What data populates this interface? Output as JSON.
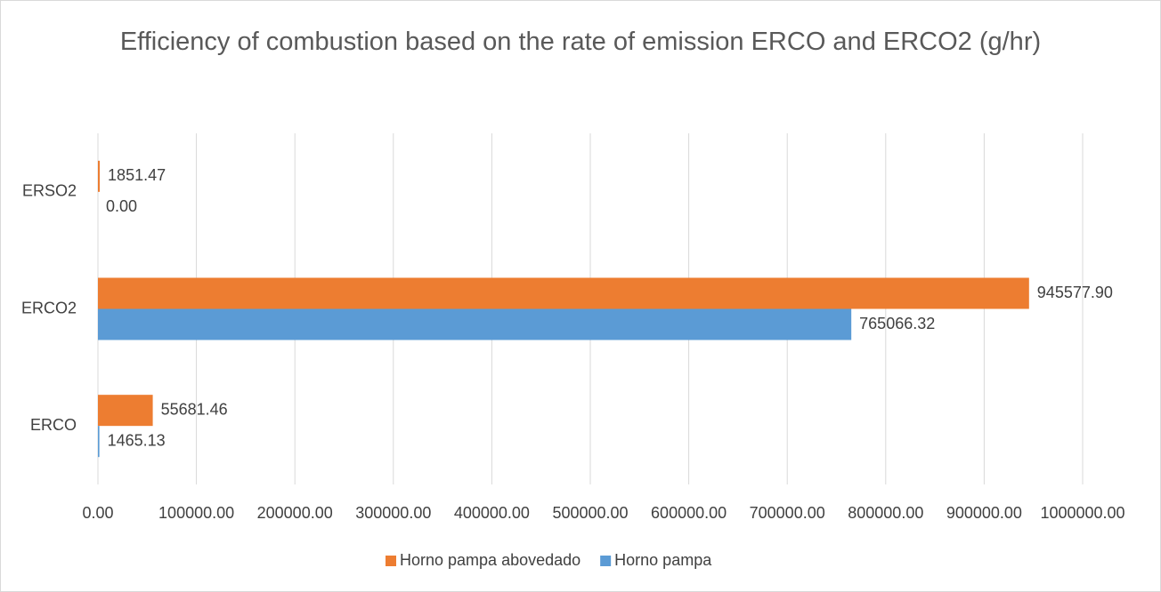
{
  "chart_data": {
    "type": "bar",
    "orientation": "horizontal",
    "title": "Efficiency of combustion based on the rate of emission ERCO and ERCO2 (g/hr)",
    "categories": [
      "ERCO",
      "ERCO2",
      "ERSO2"
    ],
    "series": [
      {
        "name": "Horno pampa abovedado",
        "color": "#ed7d31",
        "values": [
          55681.46,
          945577.9,
          1851.47
        ],
        "value_labels": [
          "55681.46",
          "945577.90",
          "1851.47"
        ]
      },
      {
        "name": "Horno pampa",
        "color": "#5b9bd5",
        "values": [
          1465.13,
          765066.32,
          0
        ],
        "value_labels": [
          "1465.13",
          "765066.32",
          "0.00"
        ]
      }
    ],
    "xlim": [
      0,
      1000000
    ],
    "xticks": [
      {
        "value": 0,
        "label": "0.00"
      },
      {
        "value": 100000,
        "label": "100000.00"
      },
      {
        "value": 200000,
        "label": "200000.00"
      },
      {
        "value": 300000,
        "label": "300000.00"
      },
      {
        "value": 400000,
        "label": "400000.00"
      },
      {
        "value": 500000,
        "label": "500000.00"
      },
      {
        "value": 600000,
        "label": "600000.00"
      },
      {
        "value": 700000,
        "label": "700000.00"
      },
      {
        "value": 800000,
        "label": "800000.00"
      },
      {
        "value": 900000,
        "label": "900000.00"
      },
      {
        "value": 1000000,
        "label": "1000000.00"
      }
    ],
    "grid": true,
    "legend": "bottom"
  }
}
